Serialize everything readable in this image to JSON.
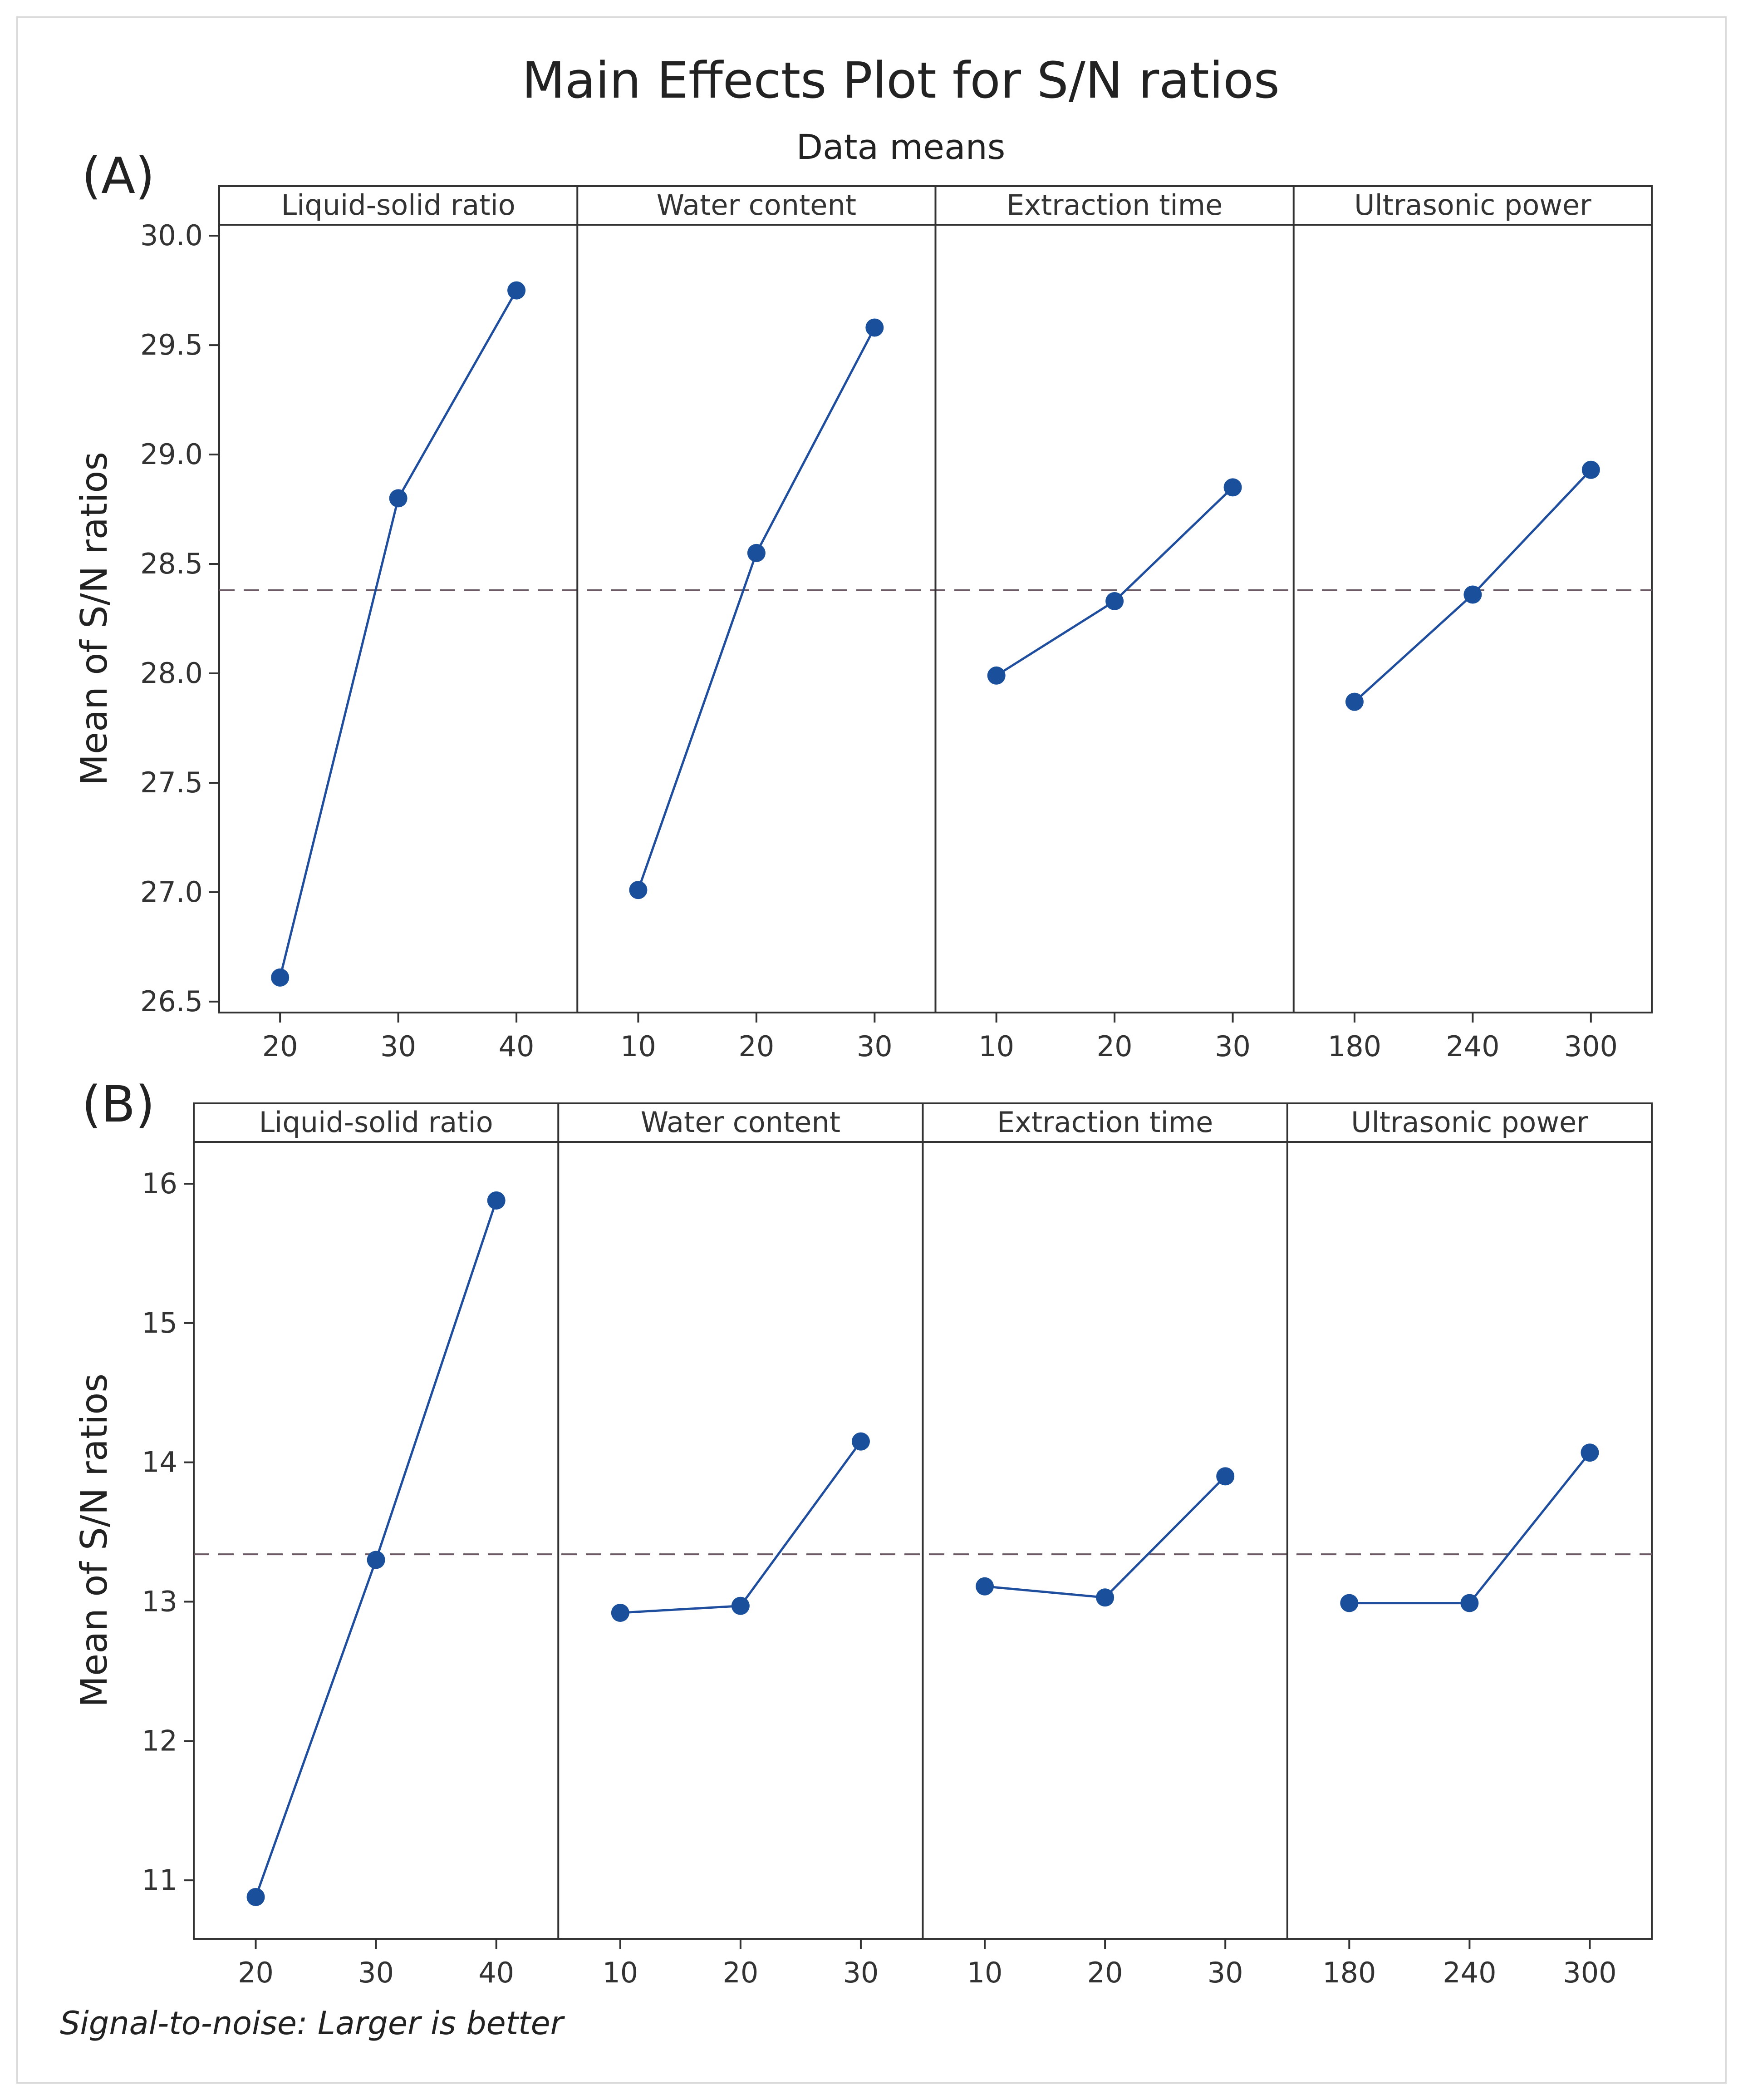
{
  "header": {
    "title": "Main Effects Plot for S/N ratios",
    "subtitle": "Data means"
  },
  "footer": {
    "note": "Signal-to-noise: Larger is better"
  },
  "colors": {
    "series": "#1f4e9e",
    "marker": "#1a4f9c",
    "reference_line": "#6b5a63",
    "axis": "#333333"
  },
  "chart_data": [
    {
      "type": "line",
      "panel_label": "(A)",
      "title": "Main Effects Plot for S/N ratios",
      "subtitle": "Data means",
      "ylabel": "Mean of S/N ratios",
      "ylim": [
        26.45,
        30.05
      ],
      "yticks": [
        26.5,
        27.0,
        27.5,
        28.0,
        28.5,
        29.0,
        29.5,
        30.0
      ],
      "ytick_labels": [
        "26.5",
        "27.0",
        "27.5",
        "28.0",
        "28.5",
        "29.0",
        "29.5",
        "30.0"
      ],
      "reference_line": 28.38,
      "facets": [
        {
          "name": "Liquid-solid ratio",
          "x": [
            "20",
            "30",
            "40"
          ],
          "values": [
            26.61,
            28.8,
            29.75
          ]
        },
        {
          "name": "Water content",
          "x": [
            "10",
            "20",
            "30"
          ],
          "values": [
            27.01,
            28.55,
            29.58
          ]
        },
        {
          "name": "Extraction time",
          "x": [
            "10",
            "20",
            "30"
          ],
          "values": [
            27.99,
            28.33,
            28.85
          ]
        },
        {
          "name": "Ultrasonic power",
          "x": [
            "180",
            "240",
            "300"
          ],
          "values": [
            27.87,
            28.36,
            28.93
          ]
        }
      ]
    },
    {
      "type": "line",
      "panel_label": "(B)",
      "ylabel": "Mean of S/N ratios",
      "ylim": [
        10.58,
        16.3
      ],
      "yticks": [
        11,
        12,
        13,
        14,
        15,
        16
      ],
      "ytick_labels": [
        "11",
        "12",
        "13",
        "14",
        "15",
        "16"
      ],
      "reference_line": 13.34,
      "facets": [
        {
          "name": "Liquid-solid ratio",
          "x": [
            "20",
            "30",
            "40"
          ],
          "values": [
            10.88,
            13.3,
            15.88
          ]
        },
        {
          "name": "Water content",
          "x": [
            "10",
            "20",
            "30"
          ],
          "values": [
            12.92,
            12.97,
            14.15
          ]
        },
        {
          "name": "Extraction time",
          "x": [
            "10",
            "20",
            "30"
          ],
          "values": [
            13.11,
            13.03,
            13.9
          ]
        },
        {
          "name": "Ultrasonic power",
          "x": [
            "180",
            "240",
            "300"
          ],
          "values": [
            12.99,
            12.99,
            14.07
          ]
        }
      ]
    }
  ]
}
